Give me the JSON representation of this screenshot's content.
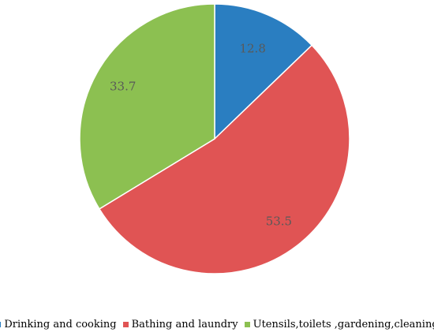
{
  "chart_data": {
    "type": "pie",
    "categories": [
      "Drinking and cooking",
      "Bathing and laundry",
      "Utensils,toilets ,gardening,cleaning"
    ],
    "values": [
      12.8,
      53.5,
      33.7
    ],
    "data_labels": [
      "12.8",
      "53.5",
      "33.7"
    ],
    "colors": [
      "#2a7ec1",
      "#e05454",
      "#8cc051"
    ],
    "start_angle_deg": 0,
    "direction": "clockwise",
    "legend_position": "bottom"
  },
  "legend": {
    "items": [
      {
        "label": "Drinking and cooking",
        "color": "#2a7ec1"
      },
      {
        "label": "Bathing and laundry",
        "color": "#e05454"
      },
      {
        "label": "Utensils,toilets ,gardening,cleaning",
        "color": "#8cc051"
      }
    ]
  }
}
